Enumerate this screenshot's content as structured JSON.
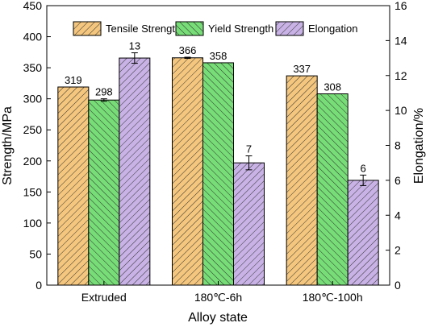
{
  "chart_data": {
    "type": "bar",
    "categories": [
      "Extruded",
      "180℃-6h",
      "180℃-100h"
    ],
    "xlabel": "Alloy state",
    "ylabel": "Strength/MPa",
    "y2label": "Elongation/%",
    "ylim": [
      0,
      450
    ],
    "y2lim": [
      0,
      16
    ],
    "yticks": [
      "0",
      "50",
      "100",
      "150",
      "200",
      "250",
      "300",
      "350",
      "400",
      "450"
    ],
    "y2ticks": [
      "0",
      "2",
      "4",
      "6",
      "8",
      "10",
      "12",
      "14",
      "16"
    ],
    "legend_position": "top",
    "series": [
      {
        "name": "Tensile Strength",
        "axis": "left",
        "values": [
          319,
          366,
          337
        ],
        "errors": [
          0,
          1,
          0
        ],
        "labels": [
          "319",
          "366",
          "337"
        ],
        "color": "#f5c77e",
        "hatch": "forward"
      },
      {
        "name": "Yield Strength",
        "axis": "left",
        "values": [
          298,
          358,
          308
        ],
        "errors": [
          2,
          0,
          0
        ],
        "labels": [
          "298",
          "358",
          "308"
        ],
        "color": "#77dd77",
        "hatch": "back"
      },
      {
        "name": "Elongation",
        "axis": "right",
        "values": [
          13,
          7,
          6
        ],
        "errors": [
          0.3,
          0.4,
          0.3
        ],
        "labels": [
          "13",
          "7",
          "6"
        ],
        "color": "#c9b3e6",
        "hatch": "forward"
      }
    ]
  }
}
